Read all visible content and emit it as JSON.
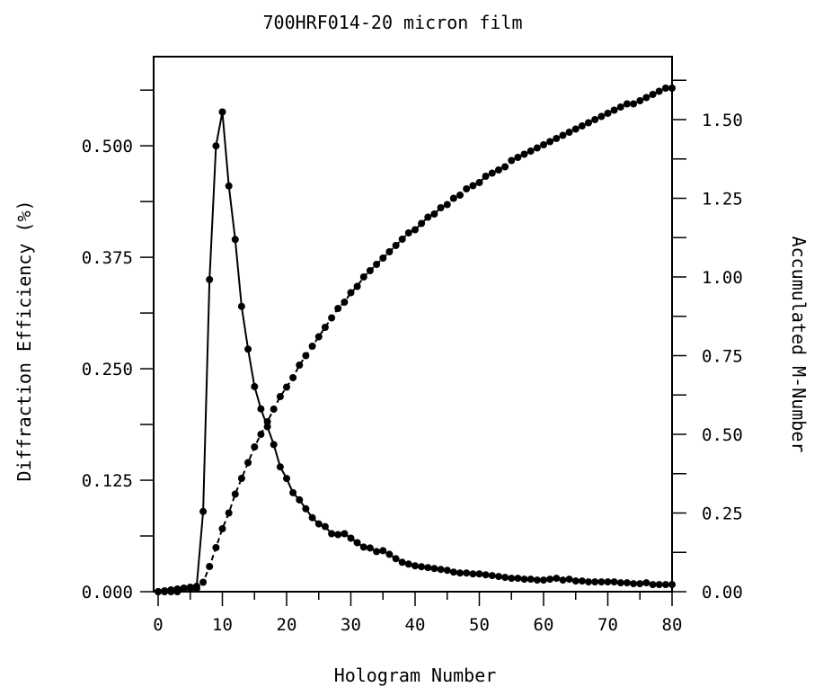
{
  "chart_data": {
    "type": "line",
    "title": "700HRF014-20 micron film",
    "xlabel": "Hologram Number",
    "ylabel_left": "Diffraction Efficiency (%)",
    "ylabel_right": "Accumulated M-Number",
    "xlim": [
      0,
      80
    ],
    "ylim_left": [
      0,
      0.6
    ],
    "ylim_right": [
      0,
      1.7
    ],
    "x_ticks": [
      "0",
      "10",
      "20",
      "30",
      "40",
      "50",
      "60",
      "70",
      "80"
    ],
    "y_ticks_left": [
      "0.000",
      "0.125",
      "0.250",
      "0.375",
      "0.500"
    ],
    "y_ticks_right": [
      "0.00",
      "0.25",
      "0.50",
      "0.75",
      "1.00",
      "1.25",
      "1.50"
    ],
    "grid": false,
    "series": [
      {
        "axis": "left",
        "line_style": "solid",
        "x": [
          0,
          1,
          2,
          3,
          4,
          5,
          6,
          7,
          8,
          9,
          10,
          11,
          12,
          13,
          14,
          15,
          16,
          17,
          18,
          19,
          20,
          21,
          22,
          23,
          24,
          25,
          26,
          27,
          28,
          29,
          30,
          31,
          32,
          33,
          34,
          35,
          36,
          37,
          38,
          39,
          40,
          41,
          42,
          43,
          44,
          45,
          46,
          47,
          48,
          49,
          50,
          51,
          52,
          53,
          54,
          55,
          56,
          57,
          58,
          59,
          60,
          61,
          62,
          63,
          64,
          65,
          66,
          67,
          68,
          69,
          70,
          71,
          72,
          73,
          74,
          75,
          76,
          77,
          78,
          79,
          80
        ],
        "y": [
          0.0,
          0.001,
          0.002,
          0.003,
          0.004,
          0.005,
          0.006,
          0.09,
          0.35,
          0.5,
          0.538,
          0.455,
          0.395,
          0.32,
          0.272,
          0.23,
          0.205,
          0.185,
          0.165,
          0.14,
          0.127,
          0.111,
          0.103,
          0.093,
          0.083,
          0.076,
          0.073,
          0.065,
          0.064,
          0.065,
          0.06,
          0.055,
          0.05,
          0.049,
          0.045,
          0.046,
          0.042,
          0.037,
          0.033,
          0.031,
          0.029,
          0.028,
          0.027,
          0.026,
          0.025,
          0.024,
          0.022,
          0.021,
          0.021,
          0.02,
          0.02,
          0.019,
          0.018,
          0.017,
          0.016,
          0.015,
          0.015,
          0.014,
          0.014,
          0.013,
          0.013,
          0.014,
          0.015,
          0.013,
          0.014,
          0.012,
          0.012,
          0.011,
          0.011,
          0.011,
          0.011,
          0.011,
          0.01,
          0.01,
          0.009,
          0.009,
          0.01,
          0.008,
          0.008,
          0.008,
          0.008
        ]
      },
      {
        "axis": "right",
        "line_style": "dashed",
        "x": [
          0,
          1,
          2,
          3,
          4,
          5,
          6,
          7,
          8,
          9,
          10,
          11,
          12,
          13,
          14,
          15,
          16,
          17,
          18,
          19,
          20,
          21,
          22,
          23,
          24,
          25,
          26,
          27,
          28,
          29,
          30,
          31,
          32,
          33,
          34,
          35,
          36,
          37,
          38,
          39,
          40,
          41,
          42,
          43,
          44,
          45,
          46,
          47,
          48,
          49,
          50,
          51,
          52,
          53,
          54,
          55,
          56,
          57,
          58,
          59,
          60,
          61,
          62,
          63,
          64,
          65,
          66,
          67,
          68,
          69,
          70,
          71,
          72,
          73,
          74,
          75,
          76,
          77,
          78,
          79,
          80
        ],
        "y": [
          0.0,
          0.0,
          0.0,
          0.0,
          0.01,
          0.01,
          0.01,
          0.03,
          0.08,
          0.14,
          0.2,
          0.25,
          0.31,
          0.36,
          0.41,
          0.46,
          0.5,
          0.54,
          0.58,
          0.62,
          0.65,
          0.68,
          0.72,
          0.75,
          0.78,
          0.81,
          0.84,
          0.87,
          0.9,
          0.92,
          0.95,
          0.97,
          1.0,
          1.02,
          1.04,
          1.06,
          1.08,
          1.1,
          1.12,
          1.14,
          1.15,
          1.17,
          1.19,
          1.2,
          1.22,
          1.23,
          1.25,
          1.26,
          1.28,
          1.29,
          1.3,
          1.32,
          1.33,
          1.34,
          1.35,
          1.37,
          1.38,
          1.39,
          1.4,
          1.41,
          1.42,
          1.43,
          1.44,
          1.45,
          1.46,
          1.47,
          1.48,
          1.49,
          1.5,
          1.51,
          1.52,
          1.53,
          1.54,
          1.55,
          1.55,
          1.56,
          1.57,
          1.58,
          1.59,
          1.6,
          1.6
        ]
      }
    ]
  }
}
